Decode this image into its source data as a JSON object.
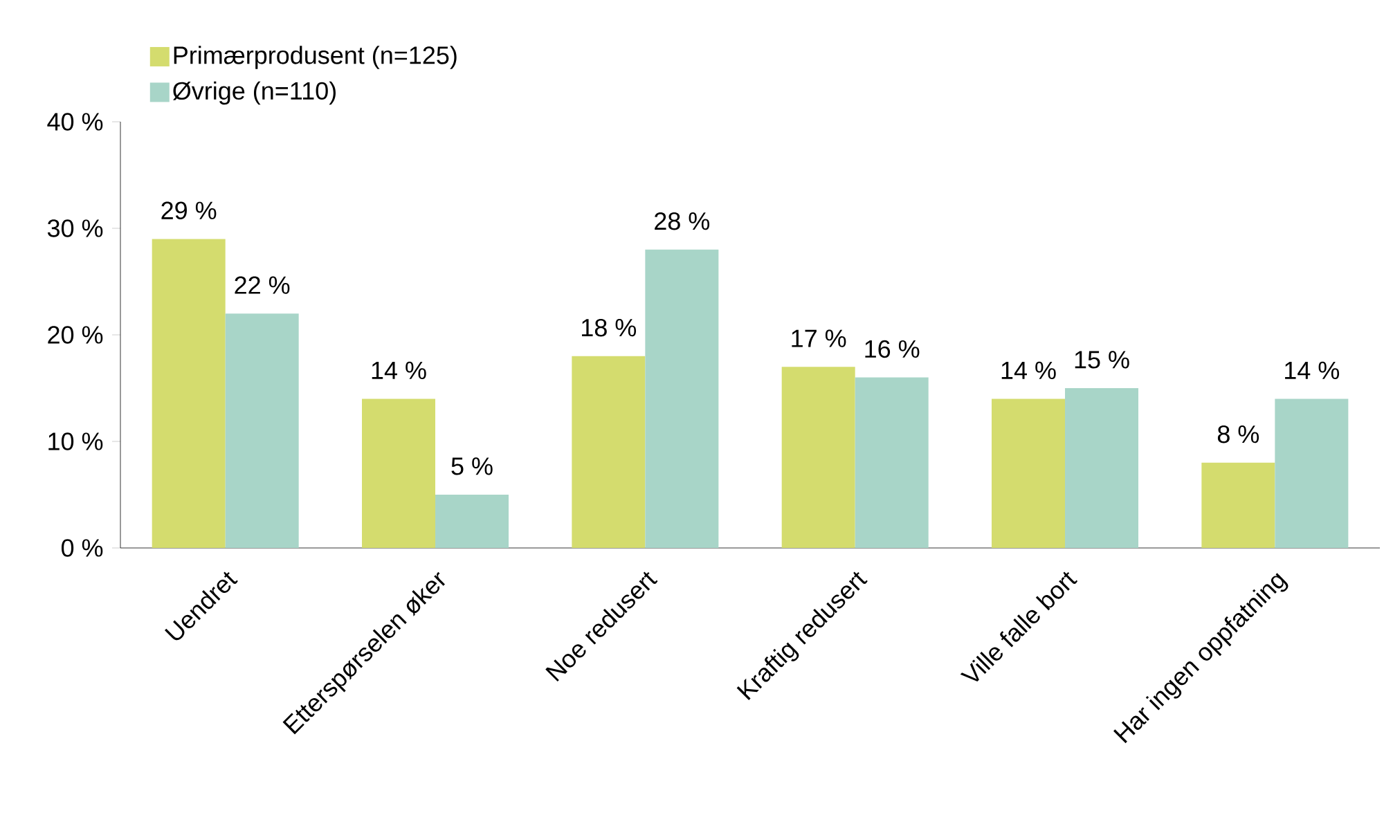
{
  "chart_data": {
    "type": "bar",
    "categories": [
      "Uendret",
      "Etterspørselen øker",
      "Noe redusert",
      "Kraftig redusert",
      "Ville falle bort",
      "Har ingen oppfatning"
    ],
    "series": [
      {
        "name": "Primærprodusent (n=125)",
        "color": "#d4dc6e",
        "values": [
          29,
          14,
          18,
          17,
          14,
          8
        ],
        "value_labels": [
          "29 %",
          "14 %",
          "18 %",
          "17 %",
          "14 %",
          "8 %"
        ]
      },
      {
        "name": "Øvrige (n=110)",
        "color": "#a8d5c8",
        "values": [
          22,
          5,
          28,
          16,
          15,
          14
        ],
        "value_labels": [
          "22 %",
          "5 %",
          "28 %",
          "16 %",
          "15 %",
          "14 %"
        ]
      }
    ],
    "ylim": [
      0,
      40
    ],
    "yticks": [
      {
        "value": 0,
        "label": "0 %"
      },
      {
        "value": 10,
        "label": "10 %"
      },
      {
        "value": 20,
        "label": "20 %"
      },
      {
        "value": 30,
        "label": "30 %"
      },
      {
        "value": 40,
        "label": "40 %"
      }
    ],
    "grid": false,
    "legend": "top left"
  }
}
